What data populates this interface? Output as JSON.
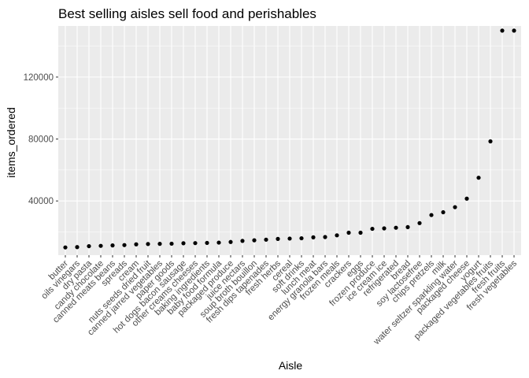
{
  "chart_data": {
    "type": "scatter",
    "title": "Best selling aisles sell food and perishables",
    "xlabel": "Aisle",
    "ylabel": "items_ordered",
    "ylim": [
      5000,
      153000
    ],
    "yticks": [
      40000,
      80000,
      120000
    ],
    "ytick_labels": [
      "40000",
      "80000",
      "120000"
    ],
    "grid": true,
    "categories": [
      "butter",
      "oils vinegars",
      "dry pasta",
      "candy chocolate",
      "canned meats beans",
      "spreads",
      "cream",
      "nuts seeds dried fruit",
      "canned jarred vegetables",
      "paper goods",
      "hot dogs bacon sausage",
      "other creams cheeses",
      "baking ingredients",
      "baby food formula",
      "packaged produce",
      "juice nectars",
      "soup broth bouillon",
      "fresh dips tapenades",
      "fresh herbs",
      "cereal",
      "soft drinks",
      "lunch meat",
      "energy granola bars",
      "frozen meals",
      "crackers",
      "eggs",
      "frozen produce",
      "ice cream ice",
      "refrigerated",
      "bread",
      "soy lactosefree",
      "chips pretzels",
      "milk",
      "water seltzer sparkling water",
      "packaged cheese",
      "yogurt",
      "packaged vegetables fruits",
      "fresh fruits",
      "fresh vegetables"
    ],
    "values": [
      10000,
      10200,
      10800,
      11000,
      11300,
      11500,
      12000,
      12200,
      12300,
      12400,
      12700,
      12800,
      12900,
      13100,
      13500,
      14200,
      14600,
      15000,
      15500,
      15700,
      15900,
      16500,
      16700,
      17800,
      19500,
      19500,
      22000,
      22300,
      22700,
      23100,
      25700,
      30900,
      32700,
      36000,
      41500,
      55000,
      78500,
      150000,
      150000
    ]
  }
}
